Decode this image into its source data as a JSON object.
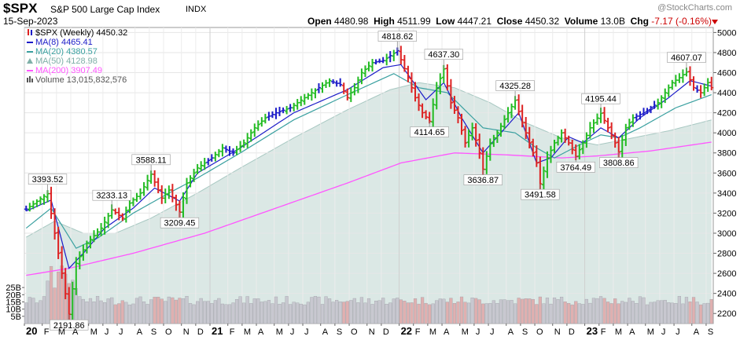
{
  "header": {
    "symbol": "$SPX",
    "name": "S&P 500 Large Cap Index",
    "type": "INDX",
    "date": "15-Sep-2023",
    "watermark": "@StockCharts.com",
    "open_label": "Open",
    "open": "4480.98",
    "high_label": "High",
    "high": "4511.99",
    "low_label": "Low",
    "low": "4447.21",
    "close_label": "Close",
    "close": "4450.32",
    "volume_label": "Volume",
    "volume": "13.0B",
    "chg_label": "Chg",
    "chg": "-7.17 (-0.16%)",
    "chg_color": "#cc0000"
  },
  "legend": [
    {
      "text": "$SPX (Weekly) 4450.32",
      "color": "#000000",
      "icon": "candle-icon"
    },
    {
      "text": "MA(8) 4465.41",
      "color": "#1c1cc8",
      "icon": "line-icon"
    },
    {
      "text": "MA(20) 4380.57",
      "color": "#3aa0a0",
      "icon": "line-icon"
    },
    {
      "text": "MA(50) 4128.98",
      "color": "#7fb0a8",
      "icon": "area-icon"
    },
    {
      "text": "MA(200) 3907.49",
      "color": "#ff55ff",
      "icon": "line-icon"
    },
    {
      "text": "Volume 13,015,832,576",
      "color": "#555555",
      "icon": "bars-icon"
    }
  ],
  "chart_data": {
    "type": "candlestick",
    "ylim": [
      2100,
      5050
    ],
    "y_ticks": [
      2200,
      2400,
      2600,
      2800,
      3000,
      3200,
      3400,
      3600,
      3800,
      4000,
      4200,
      4400,
      4600,
      4800,
      5000
    ],
    "volume_ticks": [
      "5B",
      "10B",
      "15B",
      "20B",
      "25B"
    ],
    "volume_tick_values": [
      5,
      10,
      15,
      20,
      25
    ],
    "volume_max": 60,
    "x_ticks": [
      {
        "week": 0,
        "label": "20",
        "bold": true
      },
      {
        "week": 5,
        "label": "F"
      },
      {
        "week": 9,
        "label": "M"
      },
      {
        "week": 13,
        "label": "A"
      },
      {
        "week": 18,
        "label": "M"
      },
      {
        "week": 22,
        "label": "J"
      },
      {
        "week": 26,
        "label": "J"
      },
      {
        "week": 31,
        "label": "A"
      },
      {
        "week": 35,
        "label": "S"
      },
      {
        "week": 39,
        "label": "O"
      },
      {
        "week": 44,
        "label": "N"
      },
      {
        "week": 48,
        "label": "D"
      },
      {
        "week": 52,
        "label": "21",
        "bold": true
      },
      {
        "week": 57,
        "label": "F"
      },
      {
        "week": 61,
        "label": "M"
      },
      {
        "week": 65,
        "label": "A"
      },
      {
        "week": 70,
        "label": "M"
      },
      {
        "week": 74,
        "label": "J"
      },
      {
        "week": 78,
        "label": "J"
      },
      {
        "week": 83,
        "label": "A"
      },
      {
        "week": 87,
        "label": "S"
      },
      {
        "week": 91,
        "label": "O"
      },
      {
        "week": 96,
        "label": "N"
      },
      {
        "week": 100,
        "label": "D"
      },
      {
        "week": 105,
        "label": "22",
        "bold": true
      },
      {
        "week": 109,
        "label": "F"
      },
      {
        "week": 113,
        "label": "M"
      },
      {
        "week": 117,
        "label": "A"
      },
      {
        "week": 122,
        "label": "M"
      },
      {
        "week": 126,
        "label": "J"
      },
      {
        "week": 130,
        "label": "J"
      },
      {
        "week": 135,
        "label": "A"
      },
      {
        "week": 139,
        "label": "S"
      },
      {
        "week": 143,
        "label": "O"
      },
      {
        "week": 148,
        "label": "N"
      },
      {
        "week": 152,
        "label": "D"
      },
      {
        "week": 157,
        "label": "23",
        "bold": true
      },
      {
        "week": 161,
        "label": "F"
      },
      {
        "week": 165,
        "label": "M"
      },
      {
        "week": 169,
        "label": "A"
      },
      {
        "week": 174,
        "label": "M"
      },
      {
        "week": 178,
        "label": "J"
      },
      {
        "week": 182,
        "label": "J"
      },
      {
        "week": 187,
        "label": "A"
      },
      {
        "week": 191,
        "label": "S"
      }
    ],
    "price_anchors": [
      [
        0,
        3240
      ],
      [
        6,
        3393.52
      ],
      [
        8,
        3000
      ],
      [
        10,
        2600
      ],
      [
        12,
        2191.86
      ],
      [
        14,
        2700
      ],
      [
        17,
        2900
      ],
      [
        21,
        3050
      ],
      [
        24,
        3233.13
      ],
      [
        27,
        3150
      ],
      [
        29,
        3300
      ],
      [
        32,
        3400
      ],
      [
        35,
        3588.11
      ],
      [
        38,
        3350
      ],
      [
        40,
        3430
      ],
      [
        43,
        3209.45
      ],
      [
        45,
        3500
      ],
      [
        48,
        3650
      ],
      [
        52,
        3750
      ],
      [
        55,
        3850
      ],
      [
        58,
        3800
      ],
      [
        61,
        3900
      ],
      [
        64,
        4050
      ],
      [
        67,
        4150
      ],
      [
        70,
        4200
      ],
      [
        74,
        4250
      ],
      [
        78,
        4350
      ],
      [
        82,
        4450
      ],
      [
        85,
        4520
      ],
      [
        88,
        4480
      ],
      [
        90,
        4350
      ],
      [
        92,
        4450
      ],
      [
        94,
        4600
      ],
      [
        97,
        4700
      ],
      [
        100,
        4720
      ],
      [
        104,
        4818.62
      ],
      [
        107,
        4550
      ],
      [
        109,
        4350
      ],
      [
        111,
        4200
      ],
      [
        113,
        4114.65
      ],
      [
        115,
        4450
      ],
      [
        117,
        4637.3
      ],
      [
        119,
        4300
      ],
      [
        121,
        4150
      ],
      [
        123,
        3900
      ],
      [
        125,
        4050
      ],
      [
        127,
        3800
      ],
      [
        128,
        3636.87
      ],
      [
        130,
        3900
      ],
      [
        132,
        4000
      ],
      [
        135,
        4200
      ],
      [
        137,
        4325.28
      ],
      [
        139,
        4100
      ],
      [
        141,
        3900
      ],
      [
        143,
        3700
      ],
      [
        144,
        3491.58
      ],
      [
        146,
        3750
      ],
      [
        148,
        3900
      ],
      [
        150,
        4000
      ],
      [
        152,
        3900
      ],
      [
        154,
        3764.49
      ],
      [
        156,
        3900
      ],
      [
        158,
        4050
      ],
      [
        161,
        4195.44
      ],
      [
        163,
        4050
      ],
      [
        165,
        3900
      ],
      [
        166,
        3808.86
      ],
      [
        168,
        4050
      ],
      [
        170,
        4150
      ],
      [
        173,
        4200
      ],
      [
        175,
        4250
      ],
      [
        177,
        4300
      ],
      [
        179,
        4400
      ],
      [
        181,
        4500
      ],
      [
        183,
        4550
      ],
      [
        185,
        4607.07
      ],
      [
        187,
        4450
      ],
      [
        189,
        4400
      ],
      [
        191,
        4500
      ],
      [
        192,
        4450.32
      ]
    ],
    "ma8_anchors": [
      [
        0,
        3220
      ],
      [
        7,
        3330
      ],
      [
        12,
        2650
      ],
      [
        16,
        2800
      ],
      [
        22,
        3050
      ],
      [
        30,
        3250
      ],
      [
        36,
        3450
      ],
      [
        43,
        3320
      ],
      [
        48,
        3600
      ],
      [
        60,
        3850
      ],
      [
        75,
        4200
      ],
      [
        90,
        4430
      ],
      [
        100,
        4650
      ],
      [
        105,
        4680
      ],
      [
        112,
        4330
      ],
      [
        117,
        4500
      ],
      [
        122,
        4150
      ],
      [
        128,
        3800
      ],
      [
        133,
        4000
      ],
      [
        138,
        4200
      ],
      [
        143,
        3700
      ],
      [
        147,
        3750
      ],
      [
        152,
        3960
      ],
      [
        156,
        3900
      ],
      [
        161,
        4050
      ],
      [
        166,
        3950
      ],
      [
        172,
        4150
      ],
      [
        180,
        4350
      ],
      [
        186,
        4520
      ],
      [
        192,
        4465.41
      ]
    ],
    "ma20_anchors": [
      [
        0,
        3050
      ],
      [
        7,
        3250
      ],
      [
        14,
        2850
      ],
      [
        20,
        2950
      ],
      [
        30,
        3200
      ],
      [
        40,
        3400
      ],
      [
        48,
        3550
      ],
      [
        60,
        3800
      ],
      [
        75,
        4130
      ],
      [
        90,
        4380
      ],
      [
        103,
        4590
      ],
      [
        110,
        4450
      ],
      [
        118,
        4400
      ],
      [
        128,
        4050
      ],
      [
        137,
        4000
      ],
      [
        143,
        3850
      ],
      [
        148,
        3750
      ],
      [
        155,
        3880
      ],
      [
        161,
        3980
      ],
      [
        166,
        3950
      ],
      [
        172,
        4050
      ],
      [
        182,
        4250
      ],
      [
        192,
        4380.57
      ]
    ],
    "ma50_anchors": [
      [
        0,
        2960
      ],
      [
        8,
        3120
      ],
      [
        16,
        3000
      ],
      [
        25,
        3000
      ],
      [
        35,
        3150
      ],
      [
        48,
        3400
      ],
      [
        60,
        3650
      ],
      [
        75,
        3950
      ],
      [
        90,
        4230
      ],
      [
        102,
        4430
      ],
      [
        110,
        4500
      ],
      [
        120,
        4450
      ],
      [
        130,
        4300
      ],
      [
        140,
        4100
      ],
      [
        150,
        3950
      ],
      [
        160,
        3880
      ],
      [
        170,
        3950
      ],
      [
        180,
        4020
      ],
      [
        192,
        4128.98
      ]
    ],
    "ma200_anchors": [
      [
        0,
        2580
      ],
      [
        12,
        2650
      ],
      [
        30,
        2800
      ],
      [
        50,
        3000
      ],
      [
        70,
        3250
      ],
      [
        90,
        3500
      ],
      [
        105,
        3700
      ],
      [
        120,
        3800
      ],
      [
        135,
        3780
      ],
      [
        150,
        3750
      ],
      [
        160,
        3770
      ],
      [
        175,
        3820
      ],
      [
        192,
        3907.49
      ]
    ],
    "annotations": [
      {
        "week": 6,
        "value": 3393.52,
        "label": "3393.52",
        "dir": "up"
      },
      {
        "week": 12,
        "value": 2191.86,
        "label": "2191.86",
        "dir": "down"
      },
      {
        "week": 24,
        "value": 3233.13,
        "label": "3233.13",
        "dir": "up"
      },
      {
        "week": 35,
        "value": 3588.11,
        "label": "3588.11",
        "dir": "up"
      },
      {
        "week": 43,
        "value": 3209.45,
        "label": "3209.45",
        "dir": "down"
      },
      {
        "week": 104,
        "value": 4818.62,
        "label": "4818.62",
        "dir": "up"
      },
      {
        "week": 113,
        "value": 4114.65,
        "label": "4114.65",
        "dir": "down"
      },
      {
        "week": 117,
        "value": 4637.3,
        "label": "4637.30",
        "dir": "up"
      },
      {
        "week": 128,
        "value": 3636.87,
        "label": "3636.87",
        "dir": "down"
      },
      {
        "week": 137,
        "value": 4325.28,
        "label": "4325.28",
        "dir": "up"
      },
      {
        "week": 144,
        "value": 3491.58,
        "label": "3491.58",
        "dir": "down"
      },
      {
        "week": 154,
        "value": 3764.49,
        "label": "3764.49",
        "dir": "down"
      },
      {
        "week": 161,
        "value": 4195.44,
        "label": "4195.44",
        "dir": "up"
      },
      {
        "week": 166,
        "value": 3808.86,
        "label": "3808.86",
        "dir": "down"
      },
      {
        "week": 185,
        "value": 4607.07,
        "label": "4607.07",
        "dir": "up"
      }
    ],
    "colors": {
      "up": "#22bb22",
      "down": "#dd2222",
      "neutral": "#1c1cc8",
      "ma8": "#1c1cc8",
      "ma20": "#3aa0a0",
      "ma50_fill": "#cfe0dc",
      "ma200": "#ff55ff",
      "vol_up": "#c8c8d0",
      "vol_down": "#e0b0b0"
    }
  }
}
